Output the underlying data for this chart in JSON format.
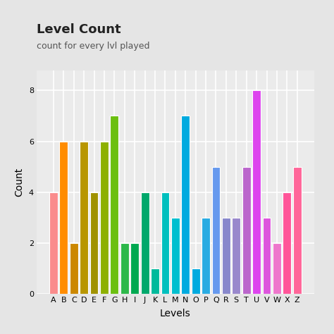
{
  "categories": [
    "A",
    "B",
    "C",
    "D",
    "E",
    "F",
    "G",
    "H",
    "I",
    "J",
    "K",
    "L",
    "M",
    "N",
    "O",
    "P",
    "Q",
    "R",
    "S",
    "T",
    "U",
    "V",
    "W",
    "X",
    "Z"
  ],
  "values": [
    4,
    6,
    2,
    6,
    4,
    6,
    7,
    2,
    2,
    4,
    1,
    4,
    3,
    7,
    1,
    3,
    5,
    3,
    3,
    5,
    8,
    3,
    2,
    4,
    5
  ],
  "bar_colors": [
    "#FA8072",
    "#FF8C00",
    "#CC8800",
    "#B8960A",
    "#A09200",
    "#8DB000",
    "#6BBF10",
    "#2DB84A",
    "#1AAD50",
    "#00A86B",
    "#00BA9C",
    "#00C0C0",
    "#00BFD0",
    "#00AADF",
    "#00AADF",
    "#2AABEB",
    "#6699EE",
    "#9090D0",
    "#9090D0",
    "#BB66CC",
    "#DD44EE",
    "#DD55DD",
    "#EE77CC",
    "#FF5599",
    "#FF5599"
  ],
  "title": "Level Count",
  "subtitle": "count for every lvl played",
  "xlabel": "Levels",
  "ylabel": "Count",
  "ylim_max": 8.8,
  "yticks": [
    0,
    2,
    4,
    6,
    8
  ],
  "background_color": "#E5E5E5",
  "panel_color": "#EBEBEB",
  "grid_color": "#FFFFFF",
  "title_fontsize": 13,
  "subtitle_fontsize": 9,
  "axis_label_fontsize": 10,
  "tick_fontsize": 8
}
